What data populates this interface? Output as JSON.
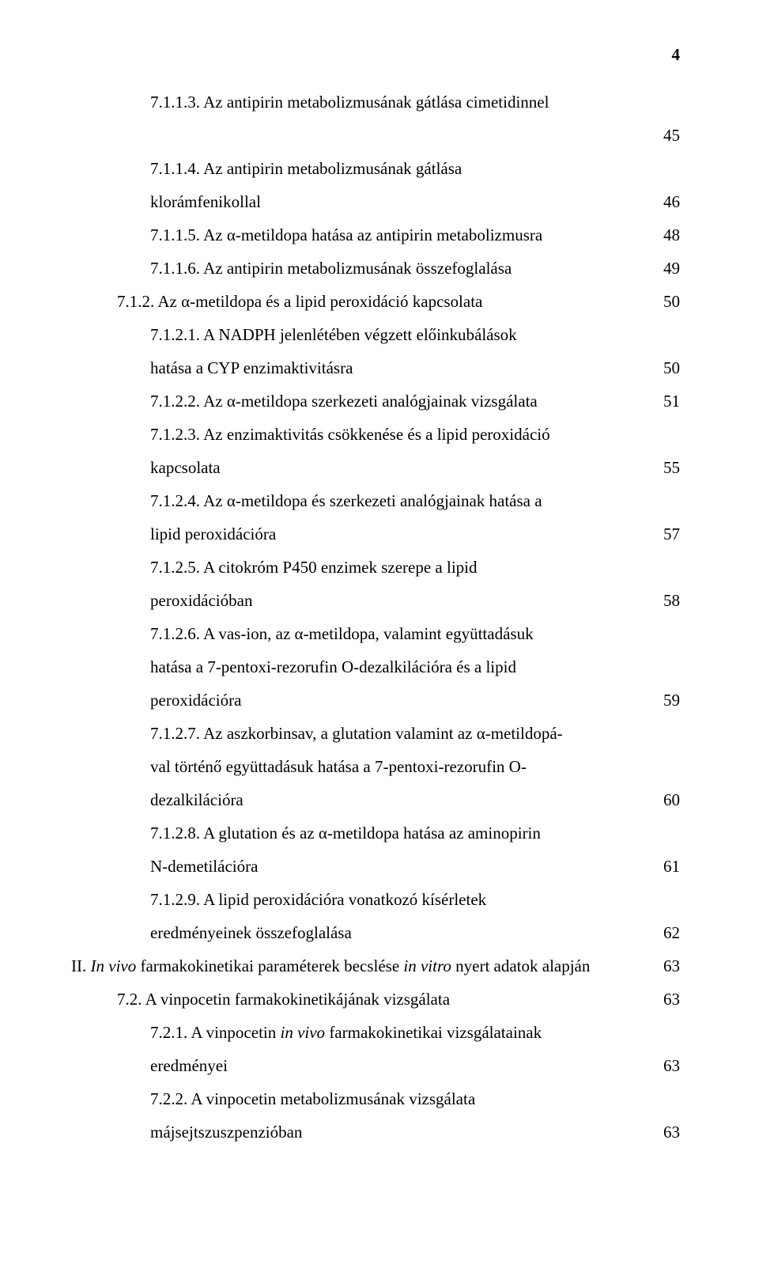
{
  "page_number": "4",
  "entries": [
    {
      "indent": "indent-2",
      "text": "7.1.1.3. Az antipirin metabolizmusának gátlása cimetidinnel",
      "page": ""
    },
    {
      "indent": "standalone-right",
      "text": "",
      "page": "45"
    },
    {
      "indent": "indent-2",
      "text": "7.1.1.4. Az antipirin metabolizmusának gátlása",
      "page": ""
    },
    {
      "indent": "continuation",
      "text": "klorámfenikollal",
      "page": "46"
    },
    {
      "indent": "indent-2",
      "text": "7.1.1.5. Az α-metildopa hatása az antipirin metabolizmusra",
      "page": "48"
    },
    {
      "indent": "indent-2",
      "text": "7.1.1.6. Az antipirin metabolizmusának összefoglalása",
      "page": "49"
    },
    {
      "indent": "indent-1",
      "text": "7.1.2. Az α-metildopa és a lipid peroxidáció kapcsolata",
      "page": "50"
    },
    {
      "indent": "indent-2",
      "text": "7.1.2.1. A NADPH jelenlétében végzett előinkubálások",
      "page": ""
    },
    {
      "indent": "continuation",
      "text": "hatása a CYP enzimaktivitásra",
      "page": "50"
    },
    {
      "indent": "indent-2",
      "text": "7.1.2.2. Az α-metildopa szerkezeti analógjainak vizsgálata",
      "page": "51"
    },
    {
      "indent": "indent-2",
      "text": "7.1.2.3. Az enzimaktivitás csökkenése és a lipid peroxidáció",
      "page": ""
    },
    {
      "indent": "continuation",
      "text": "kapcsolata",
      "page": "55"
    },
    {
      "indent": "indent-2",
      "text": "7.1.2.4. Az α-metildopa és szerkezeti analógjainak hatása a",
      "page": ""
    },
    {
      "indent": "continuation",
      "text": "lipid peroxidációra",
      "page": "57"
    },
    {
      "indent": "indent-2",
      "text": "7.1.2.5. A citokróm P450 enzimek szerepe a lipid",
      "page": ""
    },
    {
      "indent": "continuation",
      "text": "peroxidációban",
      "page": "58"
    },
    {
      "indent": "indent-2",
      "text": "7.1.2.6. A vas-ion, az α-metildopa, valamint együttadásuk",
      "page": ""
    },
    {
      "indent": "continuation",
      "text": "hatása a 7-pentoxi-rezorufin O-dezalkilációra és a lipid",
      "page": ""
    },
    {
      "indent": "continuation",
      "text": "peroxidációra",
      "page": "59"
    },
    {
      "indent": "indent-2",
      "text": "7.1.2.7. Az aszkorbinsav, a glutation valamint az α-metildopá-",
      "page": ""
    },
    {
      "indent": "continuation",
      "text": "val történő együttadásuk hatása a 7-pentoxi-rezorufin O-",
      "page": ""
    },
    {
      "indent": "continuation",
      "text": "dezalkilációra",
      "page": "60"
    },
    {
      "indent": "indent-2",
      "text": "7.1.2.8. A glutation és az α-metildopa hatása az aminopirin",
      "page": ""
    },
    {
      "indent": "continuation",
      "text": "N-demetilációra",
      "page": "61"
    },
    {
      "indent": "indent-2",
      "text": "7.1.2.9. A lipid peroxidációra vonatkozó kísérletek",
      "page": ""
    },
    {
      "indent": "continuation",
      "text": "eredményeinek összefoglalása",
      "page": "62"
    },
    {
      "indent": "indent-0",
      "text_html": "II. <span class=\"italic\">In vivo</span> farmakokinetikai paraméterek becslése <span class=\"italic\">in vitro</span> nyert adatok alapján",
      "page": "63"
    },
    {
      "indent": "indent-1",
      "text": "7.2. A vinpocetin farmakokinetikájának vizsgálata",
      "page": "63"
    },
    {
      "indent": "indent-2",
      "text_html": "7.2.1. A vinpocetin <span class=\"italic\">in vivo</span> farmakokinetikai vizsgálatainak",
      "page": ""
    },
    {
      "indent": "continuation",
      "text": "eredményei",
      "page": "63"
    },
    {
      "indent": "indent-2",
      "text": "7.2.2. A vinpocetin metabolizmusának vizsgálata",
      "page": ""
    },
    {
      "indent": "continuation",
      "text": "májsejtszuszpenzióban",
      "page": "63"
    }
  ]
}
